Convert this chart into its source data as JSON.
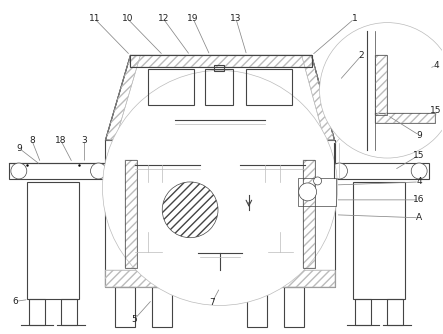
{
  "bg_color": "#ffffff",
  "line_color": "#bbbbbb",
  "dark_line": "#444444",
  "label_color": "#222222",
  "fig_width": 4.43,
  "fig_height": 3.34,
  "dpi": 100
}
